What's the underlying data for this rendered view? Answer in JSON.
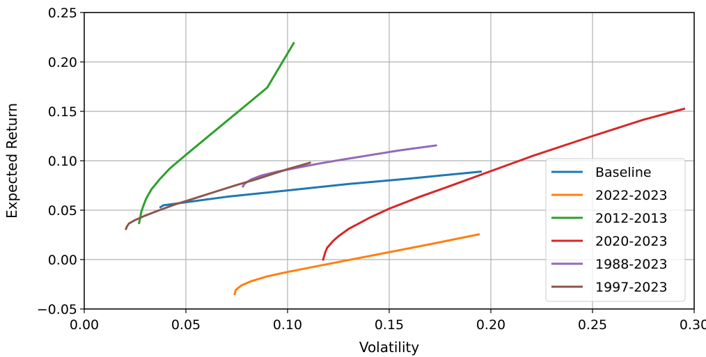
{
  "chart_data": {
    "type": "line",
    "title": "",
    "xlabel": "Volatility",
    "ylabel": "Expected Return",
    "xlim": [
      0.0,
      0.3
    ],
    "ylim": [
      -0.05,
      0.25
    ],
    "xticks": [
      0.0,
      0.05,
      0.1,
      0.15,
      0.2,
      0.25,
      0.3
    ],
    "xtick_labels": [
      "0.00",
      "0.05",
      "0.10",
      "0.15",
      "0.20",
      "0.25",
      "0.30"
    ],
    "yticks": [
      -0.05,
      0.0,
      0.05,
      0.1,
      0.15,
      0.2,
      0.25
    ],
    "ytick_labels": [
      "−0.05",
      "0.00",
      "0.05",
      "0.10",
      "0.15",
      "0.20",
      "0.25"
    ],
    "grid": true,
    "legend_position": "lower-right",
    "series": [
      {
        "name": "Baseline",
        "color": "#1f77b4",
        "x": [
          0.0375,
          0.039,
          0.041,
          0.05,
          0.07,
          0.1,
          0.13,
          0.16,
          0.195
        ],
        "y": [
          0.053,
          0.055,
          0.0555,
          0.058,
          0.0635,
          0.07,
          0.0765,
          0.082,
          0.089
        ]
      },
      {
        "name": "2022-2023",
        "color": "#ff7f0e",
        "x": [
          0.074,
          0.0745,
          0.0755,
          0.0775,
          0.082,
          0.09,
          0.1,
          0.115,
          0.13,
          0.15,
          0.17,
          0.194
        ],
        "y": [
          -0.035,
          -0.031,
          -0.029,
          -0.026,
          -0.022,
          -0.017,
          -0.0125,
          -0.0065,
          -0.0005,
          0.0075,
          0.0155,
          0.0255
        ]
      },
      {
        "name": "2012-2013",
        "color": "#2ca02c",
        "x": [
          0.027,
          0.0275,
          0.028,
          0.029,
          0.0305,
          0.033,
          0.037,
          0.042,
          0.05,
          0.06,
          0.07,
          0.08,
          0.09,
          0.103
        ],
        "y": [
          0.037,
          0.042,
          0.048,
          0.054,
          0.062,
          0.071,
          0.081,
          0.092,
          0.106,
          0.123,
          0.14,
          0.157,
          0.174,
          0.219
        ]
      },
      {
        "name": "2020-2023",
        "color": "#d62728",
        "x": [
          0.1175,
          0.1185,
          0.1195,
          0.1225,
          0.125,
          0.13,
          0.14,
          0.15,
          0.165,
          0.18,
          0.2,
          0.22,
          0.25,
          0.275,
          0.295
        ],
        "y": [
          0.0,
          0.007,
          0.012,
          0.019,
          0.0235,
          0.031,
          0.042,
          0.0515,
          0.0635,
          0.0745,
          0.0895,
          0.1045,
          0.125,
          0.1415,
          0.1525
        ]
      },
      {
        "name": "1988-2023",
        "color": "#9467bd",
        "x": [
          0.078,
          0.079,
          0.082,
          0.087,
          0.095,
          0.105,
          0.115,
          0.125,
          0.14,
          0.155,
          0.173
        ],
        "y": [
          0.074,
          0.077,
          0.081,
          0.085,
          0.089,
          0.093,
          0.097,
          0.1005,
          0.1055,
          0.1105,
          0.1155
        ]
      },
      {
        "name": "1997-2023",
        "color": "#8c564b",
        "x": [
          0.0205,
          0.021,
          0.022,
          0.025,
          0.03,
          0.037,
          0.045,
          0.055,
          0.065,
          0.075,
          0.085,
          0.1,
          0.111
        ],
        "y": [
          0.031,
          0.0335,
          0.0365,
          0.04,
          0.0445,
          0.05,
          0.056,
          0.0625,
          0.069,
          0.0755,
          0.0815,
          0.0915,
          0.098
        ]
      }
    ]
  }
}
